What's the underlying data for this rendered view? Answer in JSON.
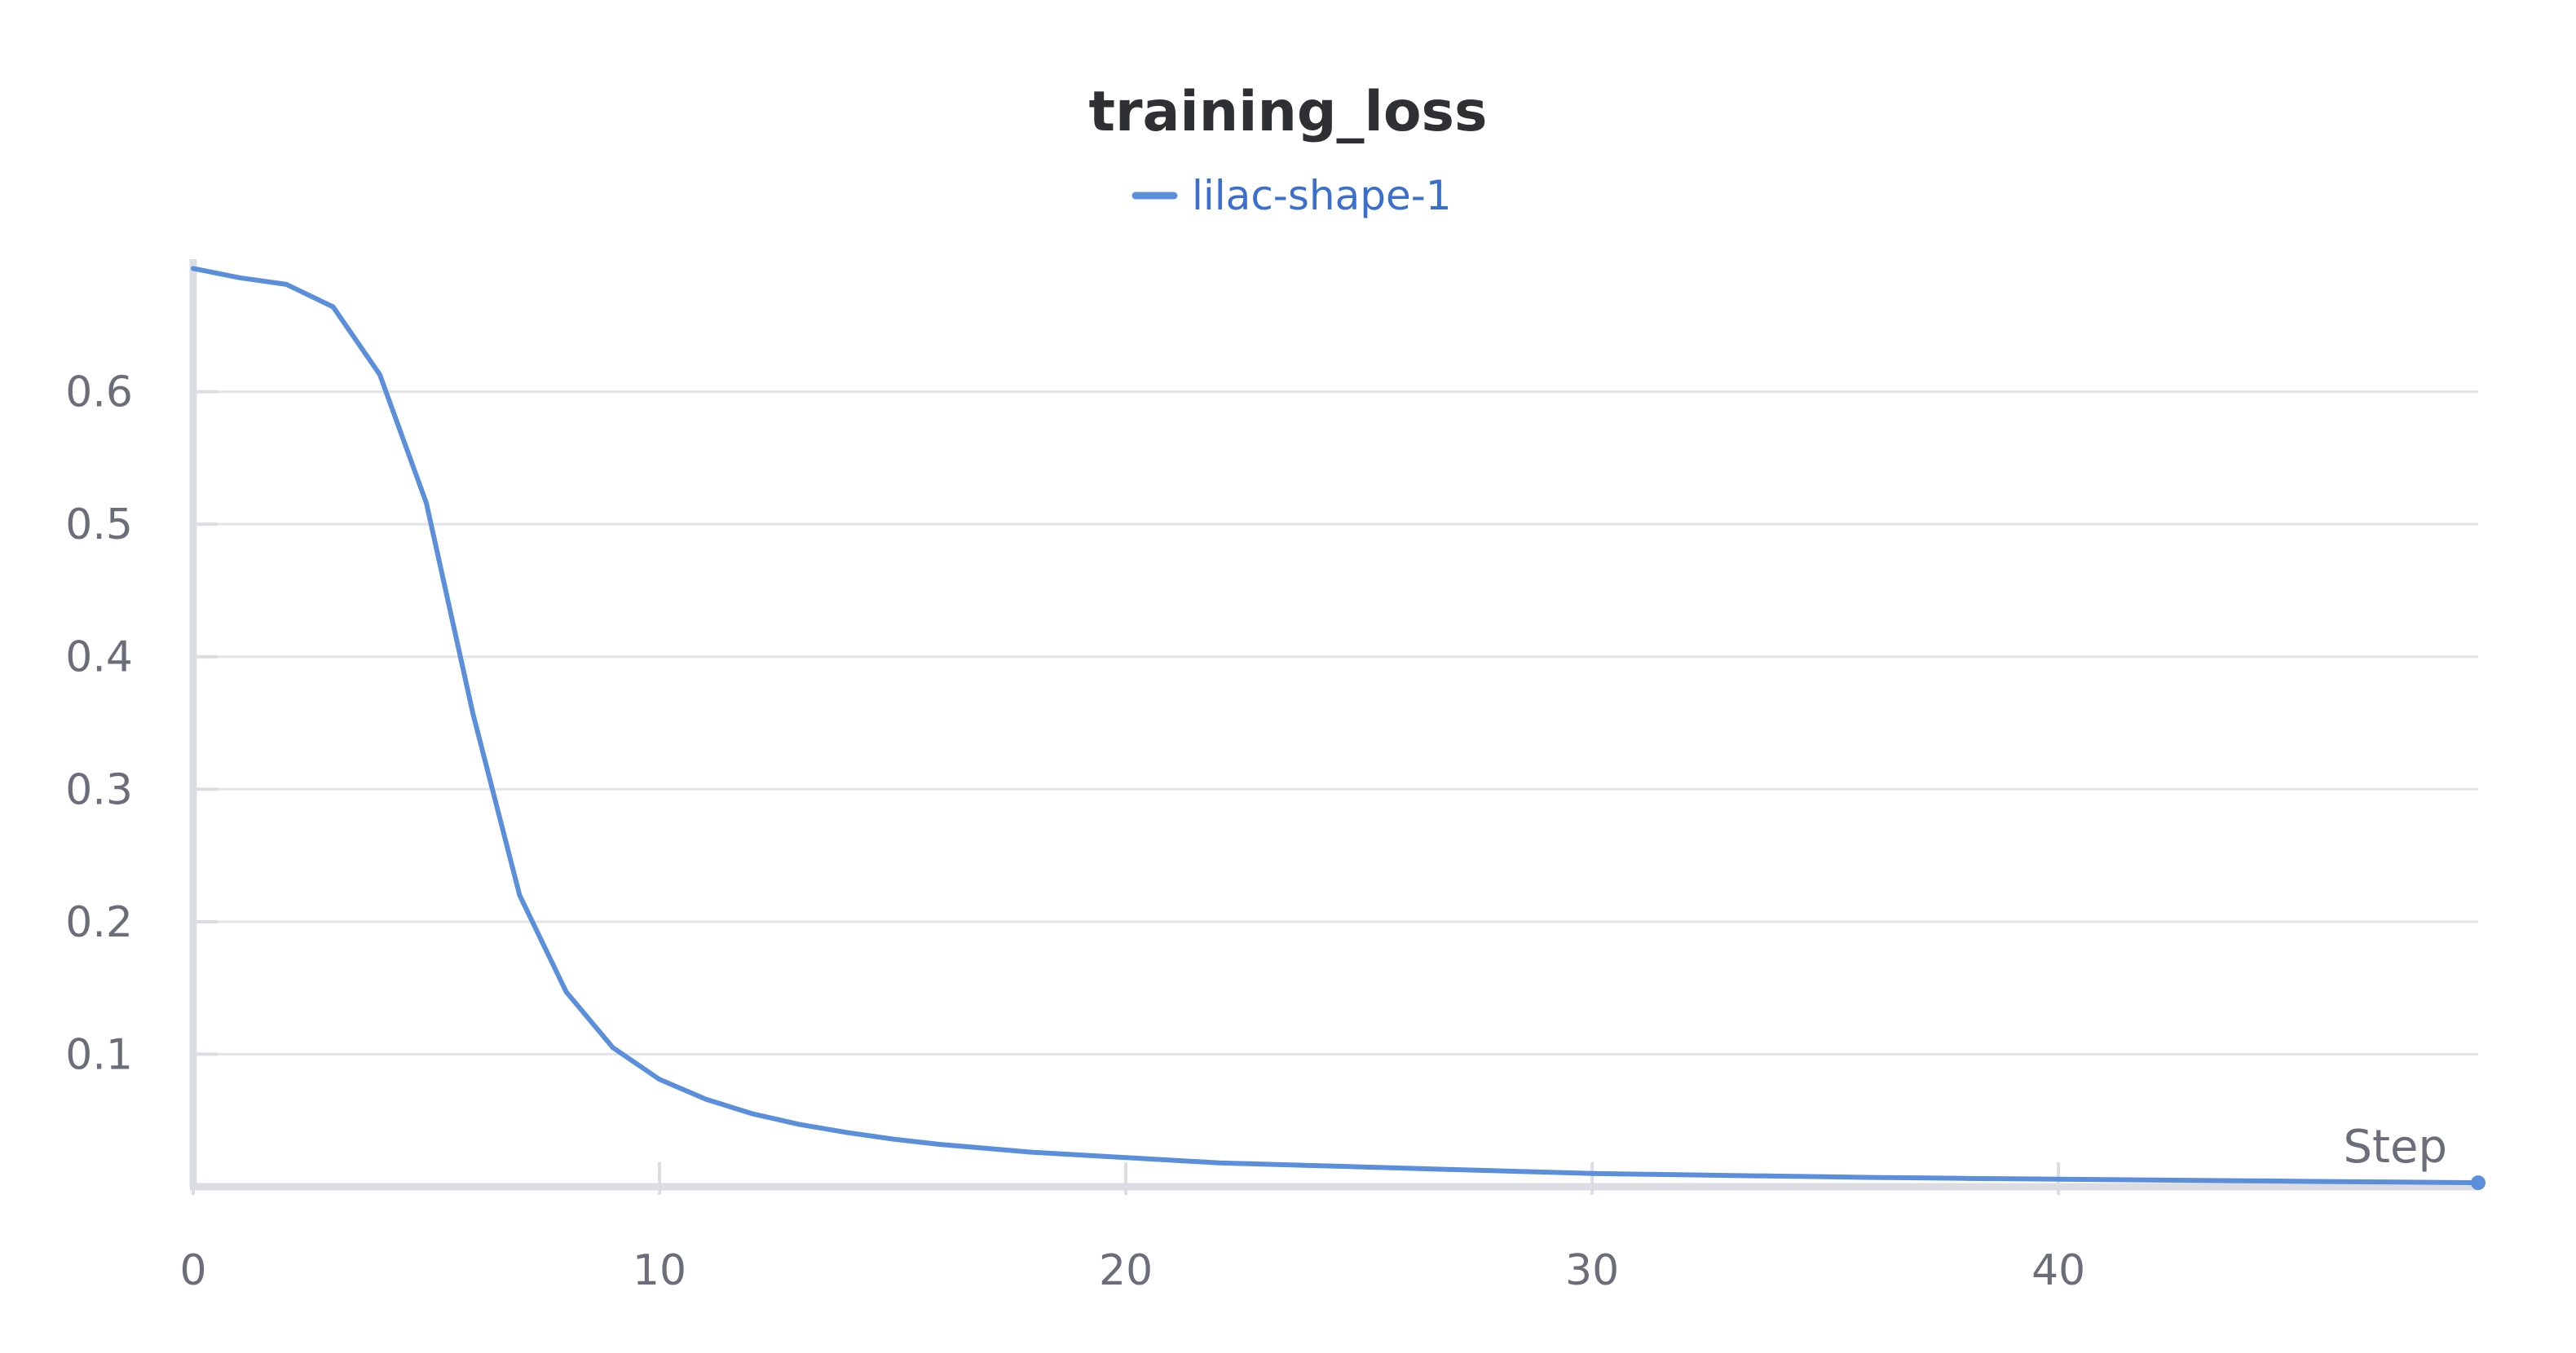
{
  "chart_data": {
    "type": "line",
    "title": "training_loss",
    "xlabel": "Step",
    "ylabel": "",
    "xlim": [
      0,
      49
    ],
    "ylim": [
      0,
      0.7
    ],
    "xticks": [
      0,
      10,
      20,
      30,
      40
    ],
    "yticks": [
      0.1,
      0.2,
      0.3,
      0.4,
      0.5,
      0.6
    ],
    "xtick_labels": [
      "0",
      "10",
      "20",
      "30",
      "40"
    ],
    "ytick_labels": [
      "0.1",
      "0.2",
      "0.3",
      "0.4",
      "0.5",
      "0.6"
    ],
    "grid": true,
    "legend_position": "top-center",
    "series": [
      {
        "name": "lilac-shape-1",
        "color": "#5b8fdb",
        "x": [
          0,
          1,
          2,
          3,
          4,
          5,
          6,
          7,
          8,
          9,
          10,
          11,
          12,
          13,
          14,
          15,
          16,
          17,
          18,
          19,
          20,
          21,
          22,
          23,
          24,
          25,
          26,
          27,
          28,
          29,
          30,
          31,
          32,
          33,
          34,
          35,
          36,
          37,
          38,
          39,
          40,
          41,
          42,
          43,
          44,
          45,
          46,
          47,
          48,
          49
        ],
        "values": [
          0.693,
          0.686,
          0.681,
          0.664,
          0.613,
          0.516,
          0.357,
          0.22,
          0.147,
          0.105,
          0.081,
          0.066,
          0.055,
          0.047,
          0.041,
          0.036,
          0.032,
          0.029,
          0.026,
          0.024,
          0.022,
          0.02,
          0.018,
          0.017,
          0.016,
          0.015,
          0.014,
          0.013,
          0.012,
          0.011,
          0.01,
          0.0095,
          0.009,
          0.0085,
          0.008,
          0.0075,
          0.007,
          0.0067,
          0.0063,
          0.006,
          0.0057,
          0.0054,
          0.0051,
          0.0048,
          0.0045,
          0.0042,
          0.0039,
          0.0036,
          0.0033,
          0.003
        ]
      }
    ]
  }
}
